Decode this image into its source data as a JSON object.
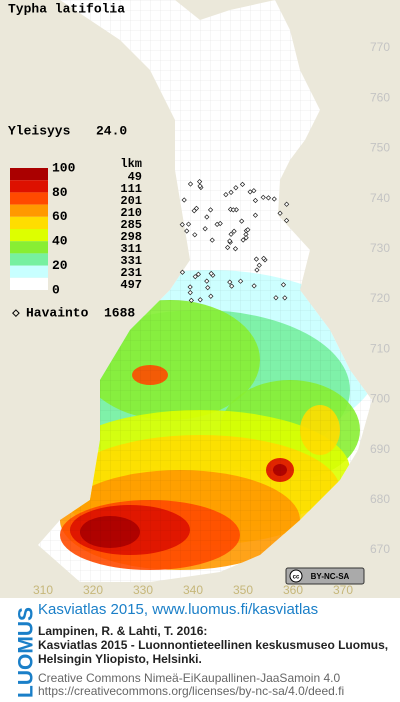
{
  "title": "Typha latifolia",
  "frequency": {
    "label": "Yleisyys",
    "value": "24.0"
  },
  "legend": {
    "header": "lkm",
    "scale_labels": [
      "100",
      "80",
      "60",
      "40",
      "20",
      "0"
    ],
    "classes": [
      {
        "color": "#aa0000",
        "count": "49"
      },
      {
        "color": "#dd1100",
        "count": "111"
      },
      {
        "color": "#ff4a00",
        "count": "201"
      },
      {
        "color": "#ff9900",
        "count": "210"
      },
      {
        "color": "#ffdd00",
        "count": "285"
      },
      {
        "color": "#ddff00",
        "count": "298"
      },
      {
        "color": "#88ee33",
        "count": "311"
      },
      {
        "color": "#77f0a0",
        "count": "331"
      },
      {
        "color": "#c8ffff",
        "count": "231"
      },
      {
        "color": "#ffffff",
        "count": "497"
      }
    ]
  },
  "observations": {
    "label": "Havainto",
    "count": "1688"
  },
  "x_ticks": [
    "310",
    "320",
    "330",
    "340",
    "350",
    "360",
    "370"
  ],
  "y_ticks": [
    "770",
    "760",
    "750",
    "740",
    "730",
    "720",
    "710",
    "700",
    "690",
    "680",
    "670"
  ],
  "license_badge": "BY-NC-SA",
  "footer": {
    "brand": "LUOMUS",
    "link": "Kasviatlas 2015, www.luomus.fi/kasviatlas",
    "citation": [
      "Lampinen, R. & Lahti, T. 2016:",
      "Kasviatlas 2015 - Luonnontieteellinen keskusmuseo Luomus,",
      "Helsingin Yliopisto, Helsinki."
    ],
    "license": [
      "Creative Commons Nimeä-EiKaupallinen-JaaSamoin 4.0",
      "https://creativecommons.org/licenses/by-nc-sa/4.0/deed.fi"
    ]
  }
}
